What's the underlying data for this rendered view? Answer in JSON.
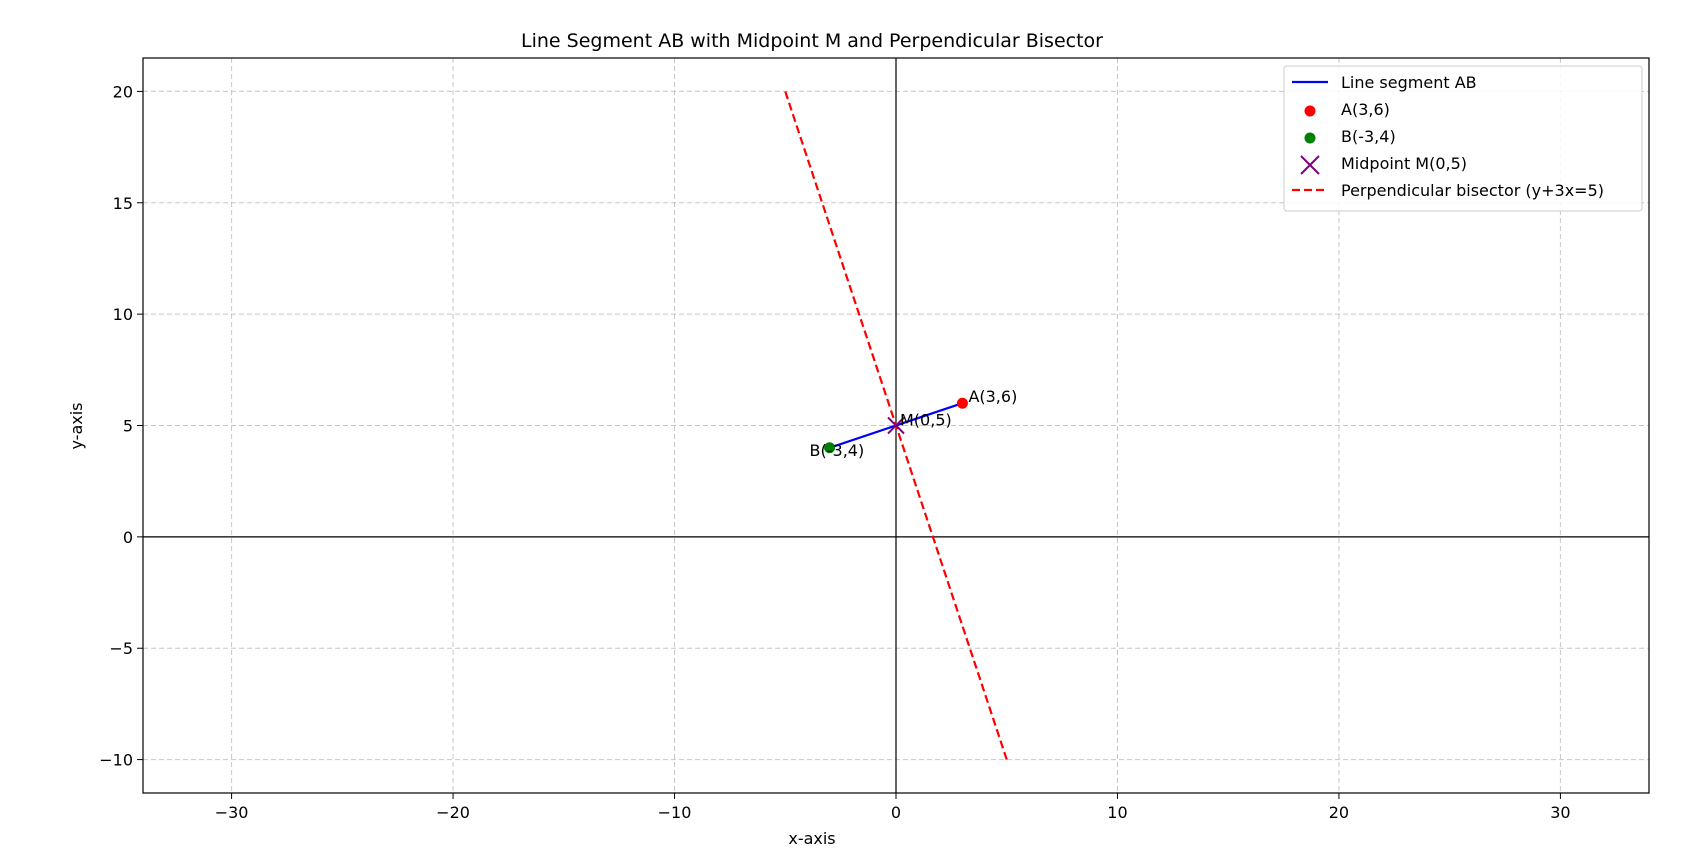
{
  "chart_data": {
    "type": "line",
    "title": "Line Segment AB with Midpoint M and Perpendicular Bisector",
    "xlabel": "x-axis",
    "ylabel": "y-axis",
    "xlim": [
      -34,
      34
    ],
    "ylim": [
      -11.5,
      21.5
    ],
    "xticks": [
      -30,
      -20,
      -10,
      0,
      10,
      20,
      30
    ],
    "yticks": [
      -10,
      -5,
      0,
      5,
      10,
      15,
      20
    ],
    "xtick_labels": [
      "−30",
      "−20",
      "−10",
      "0",
      "10",
      "20",
      "30"
    ],
    "ytick_labels": [
      "−10",
      "−5",
      "0",
      "5",
      "10",
      "15",
      "20"
    ],
    "grid": true,
    "legend_position": "top-right",
    "segment": {
      "name": "Line segment AB",
      "color": "#0000ff",
      "points": [
        [
          -3,
          4
        ],
        [
          3,
          6
        ]
      ]
    },
    "points": [
      {
        "name": "A(3,6)",
        "label": "A(3,6)",
        "x": 3,
        "y": 6,
        "color": "#ff0000",
        "marker": "circle"
      },
      {
        "name": "B(-3,4)",
        "label": "B(-3,4)",
        "x": -3,
        "y": 4,
        "color": "#008000",
        "marker": "circle"
      },
      {
        "name": "Midpoint M(0,5)",
        "label": "M(0,5)",
        "x": 0,
        "y": 5,
        "color": "#800080",
        "marker": "x"
      }
    ],
    "bisector": {
      "name": "Perpendicular bisector (y+3x=5)",
      "color": "#ff0000",
      "style": "dashed",
      "points": [
        [
          -5,
          20
        ],
        [
          5,
          -10
        ]
      ]
    }
  }
}
